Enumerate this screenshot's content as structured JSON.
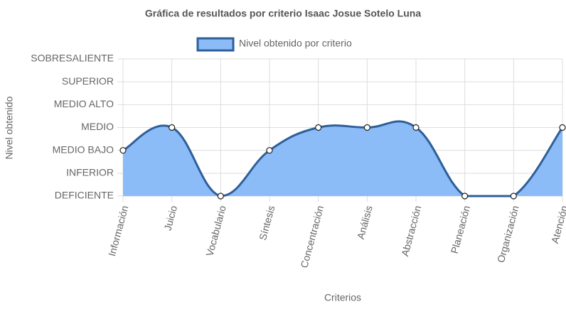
{
  "chart_data": {
    "type": "line",
    "title": "Gráfica de resultados por criterio Isaac Josue Sotelo Luna",
    "x_label": "Criterios",
    "y_label": "Nivel obtenido",
    "categories": [
      "Información",
      "Juicio",
      "Vocabulario",
      "Síntesis",
      "Concentración",
      "Análisis",
      "Abstracción",
      "Planeación",
      "Organización",
      "Atención"
    ],
    "series": [
      {
        "name": "Nivel obtenido por criterio",
        "color": "#2f5f99",
        "fill": "#8bbcf7",
        "values": [
          2,
          3,
          0,
          2,
          3,
          3,
          3,
          0,
          0,
          3
        ]
      }
    ],
    "ylim": [
      0,
      6
    ],
    "yticks": [
      {
        "value": 0,
        "label": "DEFICIENTE"
      },
      {
        "value": 1,
        "label": "INFERIOR"
      },
      {
        "value": 2,
        "label": "MEDIO BAJO"
      },
      {
        "value": 3,
        "label": "MEDIO"
      },
      {
        "value": 4,
        "label": "MEDIO ALTO"
      },
      {
        "value": 5,
        "label": "SUPERIOR"
      },
      {
        "value": 6,
        "label": "SOBRESALIENTE"
      }
    ],
    "grid": true
  }
}
